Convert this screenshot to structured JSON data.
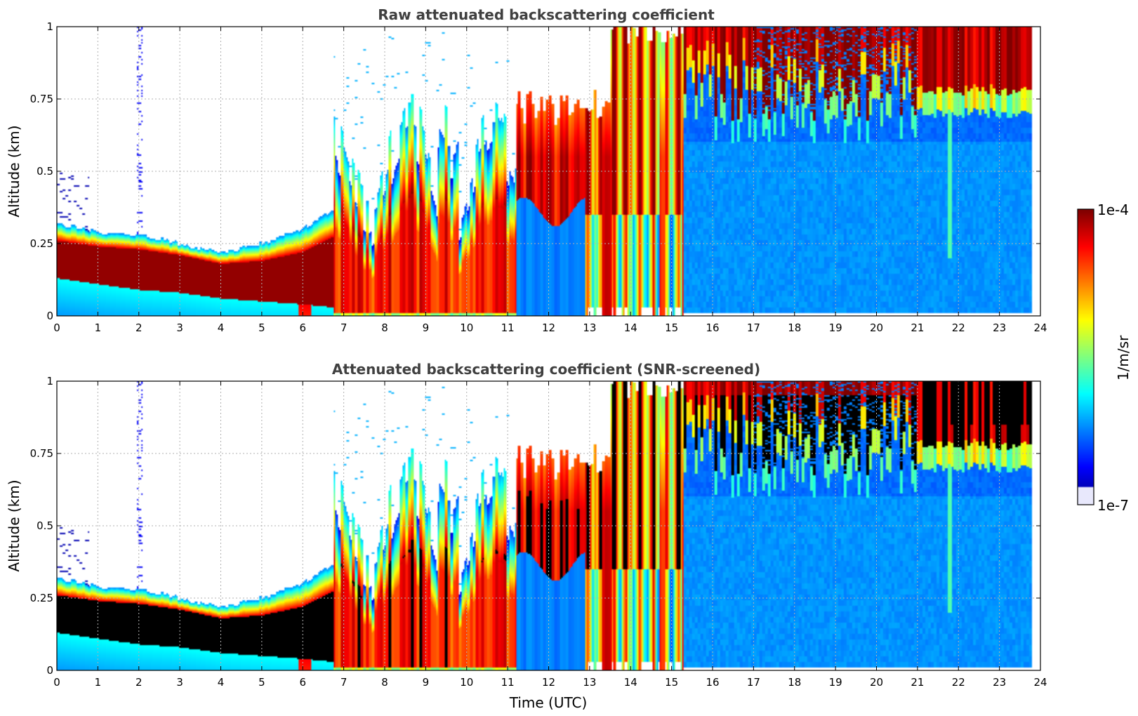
{
  "chart_data": [
    {
      "type": "heatmap",
      "title": "Raw attenuated backscattering coefficient",
      "xlabel": "",
      "ylabel": "Altitude (km)",
      "xlim": [
        0,
        24
      ],
      "ylim": [
        0,
        1
      ],
      "x_ticks": [
        "0",
        "1",
        "2",
        "3",
        "4",
        "5",
        "6",
        "7",
        "8",
        "9",
        "10",
        "11",
        "12",
        "13",
        "14",
        "15",
        "16",
        "17",
        "18",
        "19",
        "20",
        "21",
        "22",
        "23",
        "24"
      ],
      "y_ticks": [
        "0",
        "0.25",
        "0.5",
        "0.75",
        "1"
      ],
      "grid": true,
      "screened": false
    },
    {
      "type": "heatmap",
      "title": "Attenuated backscattering coefficient (SNR-screened)",
      "xlabel": "Time (UTC)",
      "ylabel": "Altitude (km)",
      "xlim": [
        0,
        24
      ],
      "ylim": [
        0,
        1
      ],
      "x_ticks": [
        "0",
        "1",
        "2",
        "3",
        "4",
        "5",
        "6",
        "7",
        "8",
        "9",
        "10",
        "11",
        "12",
        "13",
        "14",
        "15",
        "16",
        "17",
        "18",
        "19",
        "20",
        "21",
        "22",
        "23",
        "24"
      ],
      "y_ticks": [
        "0",
        "0.25",
        "0.5",
        "0.75",
        "1"
      ],
      "grid": true,
      "screened": true
    }
  ],
  "colorbar": {
    "label": "1/m/sr",
    "max_label": "1e-4",
    "min_label": "1e-7",
    "scale": "log",
    "colormap": "jet",
    "range": [
      1e-07,
      0.0001
    ]
  },
  "colors": {
    "screened_saturation": "#000000",
    "grid": "#b0b0b0",
    "title_text": "#404040"
  }
}
